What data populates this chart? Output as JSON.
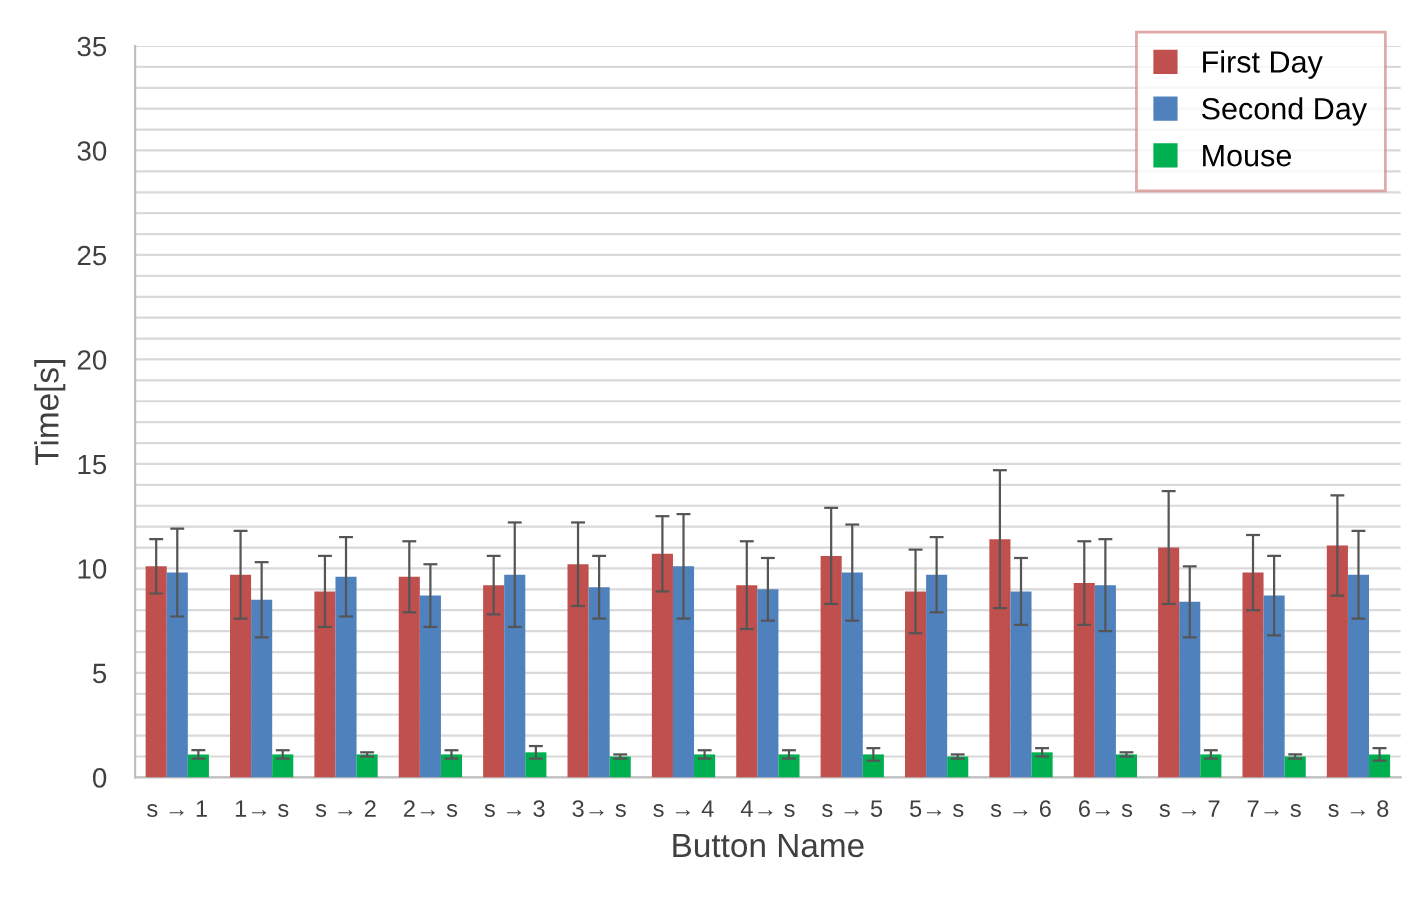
{
  "chart_data": {
    "type": "bar",
    "xlabel": "Button Name",
    "ylabel": "Time[s]",
    "categories": [
      "s → 1",
      "1→ s",
      "s → 2",
      "2→ s",
      "s → 3",
      "3→ s",
      "s → 4",
      "4→ s",
      "s → 5",
      "5→ s",
      "s → 6",
      "6→ s",
      "s → 7",
      "7→ s",
      "s → 8"
    ],
    "series": [
      {
        "name": "First Day",
        "color": "#c0504d",
        "values": [
          10.1,
          9.7,
          8.9,
          9.6,
          9.2,
          10.2,
          10.7,
          9.2,
          10.6,
          8.9,
          11.4,
          9.3,
          11.0,
          9.8,
          11.1
        ],
        "errors": [
          1.3,
          2.1,
          1.7,
          1.7,
          1.4,
          2.0,
          1.8,
          2.1,
          2.3,
          2.0,
          3.3,
          2.0,
          2.7,
          1.8,
          2.4
        ]
      },
      {
        "name": "Second Day",
        "color": "#4f81bd",
        "values": [
          9.8,
          8.5,
          9.6,
          8.7,
          9.7,
          9.1,
          10.1,
          9.0,
          9.8,
          9.7,
          8.9,
          9.2,
          8.4,
          8.7,
          9.7
        ],
        "errors": [
          2.1,
          1.8,
          1.9,
          1.5,
          2.5,
          1.5,
          2.5,
          1.5,
          2.3,
          1.8,
          1.6,
          2.2,
          1.7,
          1.9,
          2.1
        ]
      },
      {
        "name": "Mouse",
        "color": "#00b050",
        "values": [
          1.1,
          1.1,
          1.1,
          1.1,
          1.2,
          1.0,
          1.1,
          1.1,
          1.1,
          1.0,
          1.2,
          1.1,
          1.1,
          1.0,
          1.1
        ],
        "errors": [
          0.2,
          0.2,
          0.1,
          0.2,
          0.3,
          0.1,
          0.2,
          0.2,
          0.3,
          0.1,
          0.2,
          0.1,
          0.2,
          0.1,
          0.3
        ]
      }
    ],
    "ylim": [
      0,
      35
    ],
    "yticks": [
      0,
      {
        "value": 1,
        "label": null
      },
      {
        "value": 2,
        "label": null
      },
      {
        "value": 3,
        "label": null
      },
      {
        "value": 4,
        "label": null
      },
      5,
      {
        "value": 6,
        "label": null
      },
      {
        "value": 7,
        "label": null
      },
      {
        "value": 8,
        "label": null
      },
      {
        "value": 9,
        "label": null
      },
      10,
      {
        "value": 11,
        "label": null
      },
      {
        "value": 12,
        "label": null
      },
      {
        "value": 13,
        "label": null
      },
      {
        "value": 14,
        "label": null
      },
      15,
      {
        "value": 16,
        "label": null
      },
      {
        "value": 17,
        "label": null
      },
      {
        "value": 18,
        "label": null
      },
      {
        "value": 19,
        "label": null
      },
      20,
      {
        "value": 21,
        "label": null
      },
      {
        "value": 22,
        "label": null
      },
      {
        "value": 23,
        "label": null
      },
      {
        "value": 24,
        "label": null
      },
      25,
      {
        "value": 26,
        "label": null
      },
      {
        "value": 27,
        "label": null
      },
      {
        "value": 28,
        "label": null
      },
      {
        "value": 29,
        "label": null
      },
      30,
      {
        "value": 31,
        "label": null
      },
      {
        "value": 32,
        "label": null
      },
      {
        "value": 33,
        "label": null
      },
      {
        "value": 34,
        "label": null
      },
      35
    ],
    "grid": "y",
    "legend": "top right"
  }
}
